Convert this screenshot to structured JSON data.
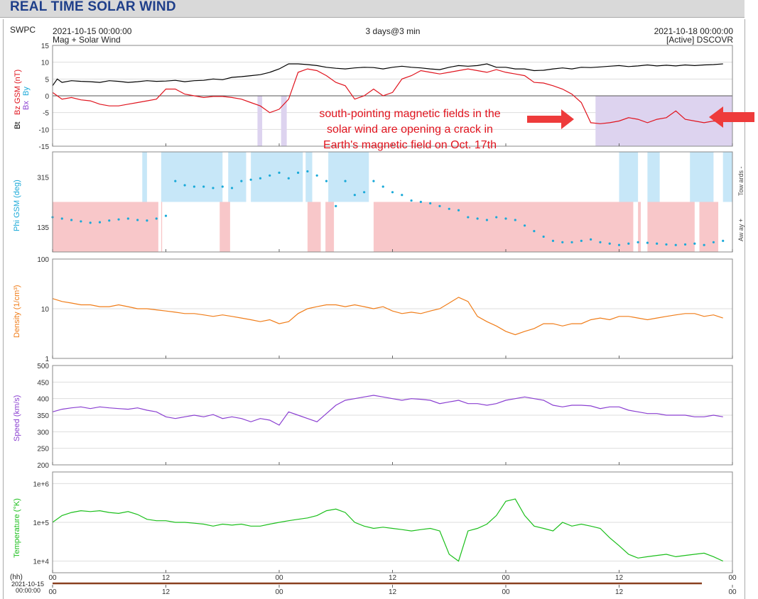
{
  "page": {
    "title": "REAL TIME SOLAR WIND",
    "source": "SWPC",
    "start_time": "2021-10-15 00:00:00",
    "end_time": "2021-10-18 00:00:00",
    "span": "3 days@3 min",
    "subtitle_left": "Mag + Solar Wind",
    "subtitle_right": "[Active] DSCOVR",
    "annotation": [
      "south-pointing magnetic fields in the",
      "solar wind are opening a crack in",
      "Earth's magnetic field on Oct. 17th"
    ],
    "hh_label": "(hh)",
    "date_label": "2021-10-15",
    "date_time_label": "00:00:00"
  },
  "colors": {
    "bt": "#000000",
    "bz": "#e0141e",
    "by": "#19a9d8",
    "bx": "#8a3fd1",
    "phi": "#19a9d8",
    "towards_fill": "#c7e7f8",
    "away_fill": "#f8c7c9",
    "south_fill": "#ddd3ef",
    "density": "#f07d19",
    "speed": "#8a3fd1",
    "temperature": "#1bbf1b",
    "arrow": "#ee3b3b",
    "annotation_text": "#e0141e",
    "title": "#1f3f8a"
  },
  "chart_data": [
    {
      "type": "line",
      "ylabel_parts": [
        "Bt",
        "Bz GSM (nT)",
        "Bx",
        "By"
      ],
      "ylim": [
        -15,
        15
      ],
      "yticks": [
        "15",
        "10",
        "5",
        "0",
        "-5",
        "-10",
        "-15"
      ],
      "xlim": [
        0,
        72
      ],
      "series": [
        {
          "name": "Bt",
          "x": [
            0,
            0.5,
            1,
            2,
            3,
            4,
            5,
            6,
            7,
            8,
            9,
            10,
            11,
            12,
            13,
            14,
            15,
            16,
            17,
            18,
            19,
            20,
            21,
            22,
            23,
            24,
            25,
            26,
            27,
            28,
            29,
            30,
            31,
            32,
            33,
            34,
            35,
            36,
            37,
            38,
            39,
            40,
            41,
            42,
            43,
            44,
            45,
            46,
            47,
            48,
            49,
            50,
            51,
            52,
            53,
            54,
            55,
            56,
            57,
            58,
            59,
            60,
            61,
            62,
            63,
            64,
            65,
            66,
            67,
            68,
            69,
            70,
            71
          ],
          "y": [
            3,
            5,
            4,
            4.5,
            4.3,
            4.2,
            4,
            4.5,
            4.3,
            4,
            4.2,
            4.5,
            4.3,
            4.4,
            4.6,
            4.2,
            4.5,
            4.6,
            5,
            4.8,
            5.5,
            5.7,
            6,
            6.3,
            7,
            8,
            9.5,
            9.5,
            9.3,
            9,
            8.5,
            8.2,
            8,
            8.3,
            8.5,
            8.4,
            8,
            8.5,
            8.8,
            8.5,
            8.3,
            8,
            7.8,
            8.5,
            9,
            8.8,
            9,
            9.5,
            8.5,
            8.5,
            8,
            8,
            7.5,
            7.6,
            8,
            8.3,
            8,
            8.5,
            8.4,
            8.6,
            8.8,
            9,
            8.7,
            8.9,
            9.2,
            8.9,
            9.1,
            8.9,
            9.2,
            9,
            9.2,
            9.3,
            9.5
          ]
        },
        {
          "name": "Bz GSM",
          "x": [
            0,
            0.5,
            1,
            2,
            3,
            4,
            5,
            6,
            7,
            8,
            9,
            10,
            11,
            12,
            13,
            14,
            15,
            16,
            17,
            18,
            19,
            20,
            21,
            22,
            23,
            24,
            25,
            26,
            27,
            28,
            29,
            30,
            31,
            32,
            33,
            34,
            35,
            36,
            37,
            38,
            39,
            40,
            41,
            42,
            43,
            44,
            45,
            46,
            47,
            48,
            49,
            50,
            51,
            52,
            53,
            54,
            55,
            56,
            57,
            58,
            59,
            60,
            61,
            62,
            63,
            64,
            65,
            66,
            67,
            68,
            69,
            70,
            71
          ],
          "y": [
            1,
            0,
            -1,
            -0.5,
            -1.2,
            -1.5,
            -2.5,
            -3,
            -3,
            -2.5,
            -2,
            -1.5,
            -1,
            2,
            2,
            0.5,
            0,
            -0.5,
            -0.2,
            -0.2,
            -0.5,
            -1,
            -2,
            -3,
            -5,
            -4,
            -1,
            7,
            8,
            7.5,
            6,
            4,
            3,
            -1,
            0,
            2,
            0,
            1,
            5,
            6,
            7.5,
            7,
            6.5,
            7,
            7.5,
            8,
            7.5,
            7,
            7.8,
            7,
            6.5,
            6,
            4,
            3.8,
            3,
            2,
            0.5,
            -2,
            -8,
            -8.3,
            -8,
            -7.5,
            -6.5,
            -7,
            -8,
            -7,
            -6.5,
            -4.5,
            -7,
            -7.5,
            -8,
            -7.5,
            -8
          ]
        }
      ]
    },
    {
      "type": "scatter",
      "ylabel": "Phi GSM (deg)",
      "yticks": [
        "315",
        "135"
      ],
      "ylim": [
        45,
        405
      ],
      "right_labels": [
        "Tow ards -",
        "Aw ay +"
      ],
      "series": [
        {
          "name": "Phi GSM",
          "x": [
            0,
            1,
            2,
            3,
            4,
            5,
            6,
            7,
            8,
            9,
            10,
            11,
            12,
            13,
            14,
            15,
            16,
            17,
            18,
            19,
            20,
            21,
            22,
            23,
            24,
            25,
            26,
            27,
            28,
            29,
            30,
            31,
            32,
            33,
            34,
            35,
            36,
            37,
            38,
            39,
            40,
            41,
            42,
            43,
            44,
            45,
            46,
            47,
            48,
            49,
            50,
            51,
            52,
            53,
            54,
            55,
            56,
            57,
            58,
            59,
            60,
            61,
            62,
            63,
            64,
            65,
            66,
            67,
            68,
            69,
            70,
            71
          ],
          "y": [
            170,
            165,
            160,
            155,
            150,
            152,
            158,
            162,
            165,
            160,
            158,
            165,
            175,
            300,
            285,
            280,
            280,
            275,
            280,
            275,
            300,
            305,
            310,
            320,
            330,
            310,
            330,
            335,
            320,
            300,
            210,
            300,
            250,
            260,
            300,
            280,
            260,
            250,
            230,
            225,
            220,
            210,
            200,
            195,
            170,
            165,
            160,
            170,
            165,
            160,
            140,
            120,
            100,
            85,
            80,
            80,
            85,
            90,
            80,
            75,
            70,
            75,
            80,
            78,
            75,
            72,
            70,
            72,
            75,
            70,
            80,
            85
          ]
        }
      ]
    },
    {
      "type": "line",
      "ylabel": "Density (1/cm³)",
      "yscale": "log",
      "ylim": [
        1,
        100
      ],
      "yticks": [
        "100",
        "10",
        "1"
      ],
      "series": [
        {
          "name": "Density",
          "x": [
            0,
            1,
            2,
            3,
            4,
            5,
            6,
            7,
            8,
            9,
            10,
            11,
            12,
            13,
            14,
            15,
            16,
            17,
            18,
            19,
            20,
            21,
            22,
            23,
            24,
            25,
            26,
            27,
            28,
            29,
            30,
            31,
            32,
            33,
            34,
            35,
            36,
            37,
            38,
            39,
            40,
            41,
            42,
            43,
            44,
            45,
            46,
            47,
            48,
            49,
            50,
            51,
            52,
            53,
            54,
            55,
            56,
            57,
            58,
            59,
            60,
            61,
            62,
            63,
            64,
            65,
            66,
            67,
            68,
            69,
            70,
            71
          ],
          "y": [
            16,
            14,
            13,
            12,
            12,
            11,
            11,
            12,
            11,
            10,
            10,
            9.5,
            9,
            8.5,
            8,
            8,
            7.5,
            7,
            7.5,
            7,
            6.5,
            6,
            5.5,
            6,
            5,
            5.5,
            8,
            10,
            11,
            12,
            12,
            11,
            12,
            11,
            10,
            11,
            9,
            8,
            8.5,
            8,
            9,
            10,
            13,
            17,
            14,
            7,
            5.5,
            4.5,
            3.5,
            3,
            3.5,
            4,
            5,
            5,
            4.5,
            5,
            5,
            6,
            6.5,
            6,
            7,
            7,
            6.5,
            6,
            6.5,
            7,
            7.5,
            8,
            8,
            7,
            7.5,
            6.5
          ]
        }
      ]
    },
    {
      "type": "line",
      "ylabel": "Speed (km/s)",
      "ylim": [
        200,
        500
      ],
      "yticks": [
        "500",
        "450",
        "400",
        "350",
        "300",
        "250",
        "200"
      ],
      "series": [
        {
          "name": "Speed",
          "x": [
            0,
            1,
            2,
            3,
            4,
            5,
            6,
            7,
            8,
            9,
            10,
            11,
            12,
            13,
            14,
            15,
            16,
            17,
            18,
            19,
            20,
            21,
            22,
            23,
            24,
            25,
            26,
            27,
            28,
            29,
            30,
            31,
            32,
            33,
            34,
            35,
            36,
            37,
            38,
            39,
            40,
            41,
            42,
            43,
            44,
            45,
            46,
            47,
            48,
            49,
            50,
            51,
            52,
            53,
            54,
            55,
            56,
            57,
            58,
            59,
            60,
            61,
            62,
            63,
            64,
            65,
            66,
            67,
            68,
            69,
            70,
            71
          ],
          "y": [
            360,
            368,
            372,
            375,
            370,
            375,
            372,
            370,
            368,
            372,
            365,
            360,
            345,
            340,
            345,
            350,
            345,
            352,
            340,
            345,
            340,
            330,
            340,
            335,
            320,
            360,
            350,
            340,
            330,
            355,
            380,
            395,
            400,
            405,
            410,
            405,
            400,
            395,
            400,
            398,
            395,
            385,
            390,
            395,
            385,
            385,
            380,
            385,
            395,
            400,
            405,
            400,
            395,
            380,
            375,
            380,
            380,
            378,
            370,
            375,
            375,
            365,
            360,
            355,
            355,
            350,
            350,
            350,
            345,
            345,
            350,
            345
          ]
        }
      ]
    },
    {
      "type": "line",
      "ylabel": "Temperature (°K)",
      "yscale": "log",
      "ylim": [
        5000,
        2000000
      ],
      "yticks": [
        "1e+6",
        "1e+5",
        "1e+4"
      ],
      "series": [
        {
          "name": "Temperature",
          "x": [
            0,
            1,
            2,
            3,
            4,
            5,
            6,
            7,
            8,
            9,
            10,
            11,
            12,
            13,
            14,
            15,
            16,
            17,
            18,
            19,
            20,
            21,
            22,
            23,
            24,
            25,
            26,
            27,
            28,
            29,
            30,
            31,
            32,
            33,
            34,
            35,
            36,
            37,
            38,
            39,
            40,
            41,
            42,
            43,
            44,
            45,
            46,
            47,
            48,
            49,
            50,
            51,
            52,
            53,
            54,
            55,
            56,
            57,
            58,
            59,
            60,
            61,
            62,
            63,
            64,
            65,
            66,
            67,
            68,
            69,
            70,
            71
          ],
          "y": [
            100000,
            150000,
            180000,
            200000,
            190000,
            200000,
            180000,
            170000,
            190000,
            160000,
            120000,
            110000,
            110000,
            100000,
            100000,
            95000,
            90000,
            80000,
            90000,
            85000,
            90000,
            80000,
            80000,
            90000,
            100000,
            110000,
            120000,
            130000,
            150000,
            200000,
            220000,
            180000,
            100000,
            80000,
            70000,
            75000,
            70000,
            65000,
            60000,
            65000,
            70000,
            60000,
            15000,
            10000,
            60000,
            70000,
            90000,
            150000,
            350000,
            400000,
            150000,
            80000,
            70000,
            60000,
            100000,
            80000,
            90000,
            80000,
            70000,
            40000,
            25000,
            15000,
            12000,
            13000,
            14000,
            15000,
            13000,
            14000,
            15000,
            16000,
            13000,
            10000
          ]
        }
      ]
    }
  ],
  "shading": {
    "south_bz": [
      [
        21.7,
        22.2
      ],
      [
        24.2,
        24.8
      ],
      [
        57.5,
        72
      ]
    ],
    "towards": [
      [
        9.5,
        10
      ],
      [
        11.5,
        18
      ],
      [
        18.6,
        20.5
      ],
      [
        21,
        26.5
      ],
      [
        26.8,
        27.5
      ],
      [
        29.2,
        33.5
      ],
      [
        60,
        62
      ],
      [
        63,
        64.3
      ],
      [
        67.5,
        70
      ],
      [
        71,
        72
      ]
    ],
    "away": [
      [
        0,
        11.2
      ],
      [
        11.5,
        11.6
      ],
      [
        17.7,
        18.8
      ],
      [
        27,
        28.4
      ],
      [
        28.9,
        29.8
      ],
      [
        34,
        60
      ],
      [
        60,
        61.5
      ],
      [
        62,
        62.3
      ],
      [
        63,
        68
      ],
      [
        68.5,
        70.5
      ]
    ]
  },
  "x_axis": {
    "ticks": [
      {
        "h": 0,
        "label": "00"
      },
      {
        "h": 12,
        "label": "12"
      },
      {
        "h": 24,
        "label": "00"
      },
      {
        "h": 36,
        "label": "12"
      },
      {
        "h": 48,
        "label": "00"
      },
      {
        "h": 60,
        "label": "12"
      },
      {
        "h": 72,
        "label": "00"
      }
    ]
  }
}
